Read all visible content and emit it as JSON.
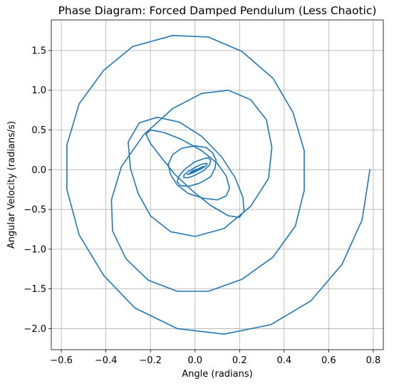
{
  "chart_data": {
    "type": "line",
    "title": "Phase Diagram: Forced Damped Pendulum (Less Chaotic)",
    "xlabel": "Angle (radians)",
    "ylabel": "Angular Velocity (radians/s)",
    "xlim": [
      -0.645,
      0.845
    ],
    "ylim": [
      -2.265,
      1.885
    ],
    "xticks": [
      -0.6,
      -0.4,
      -0.2,
      0.0,
      0.2,
      0.4,
      0.6,
      0.8
    ],
    "xtick_labels": [
      "−0.6",
      "−0.4",
      "−0.2",
      "0.0",
      "0.2",
      "0.4",
      "0.6",
      "0.8"
    ],
    "yticks": [
      -2.0,
      -1.5,
      -1.0,
      -0.5,
      0.0,
      0.5,
      1.0,
      1.5
    ],
    "ytick_labels": [
      "−2.0",
      "−1.5",
      "−1.0",
      "−0.5",
      "0.0",
      "0.5",
      "1.0",
      "1.5"
    ],
    "grid": true,
    "color": "#1f77b4",
    "series": [
      {
        "x": [
          0.785,
          0.75,
          0.66,
          0.52,
          0.34,
          0.13,
          -0.08,
          -0.27,
          -0.41,
          -0.52,
          -0.575,
          -0.575,
          -0.52,
          -0.41,
          -0.28,
          -0.1,
          0.06,
          0.21,
          0.35,
          0.44,
          0.49,
          0.49,
          0.45,
          0.35,
          0.21,
          0.06,
          -0.08,
          -0.21,
          -0.31,
          -0.37,
          -0.375,
          -0.33,
          -0.23,
          -0.1,
          0.03,
          0.15,
          0.25,
          0.32,
          0.345,
          0.33,
          0.25,
          0.13,
          0.0,
          -0.11,
          -0.2,
          -0.255,
          -0.29,
          -0.3,
          -0.25,
          -0.17,
          -0.07,
          0.03,
          0.12,
          0.18,
          0.215,
          0.22,
          0.2,
          0.15,
          0.07,
          -0.01,
          -0.09,
          -0.15,
          -0.2,
          -0.22,
          -0.2,
          -0.14,
          -0.06,
          0.03,
          0.1,
          0.14,
          0.155,
          0.14,
          0.1,
          0.04,
          -0.03,
          -0.08,
          -0.11,
          -0.12,
          -0.1,
          -0.06,
          0.0,
          0.05,
          0.08,
          0.095,
          0.09,
          0.07,
          0.02,
          -0.03,
          -0.065,
          -0.08,
          -0.07,
          -0.04,
          0.0,
          0.04,
          0.06,
          0.07,
          0.065,
          0.04,
          0.0,
          -0.03,
          -0.05,
          -0.05,
          -0.03,
          0.0,
          0.03,
          0.05,
          0.055,
          0.045,
          0.02,
          -0.01,
          -0.03,
          -0.035,
          -0.02,
          0.0,
          0.02,
          0.035,
          0.04,
          0.03,
          0.01,
          -0.01,
          -0.02,
          -0.015,
          0.0,
          0.015,
          0.025,
          0.02
        ],
        "y": [
          0.0,
          -0.63,
          -1.19,
          -1.65,
          -1.95,
          -2.07,
          -2.0,
          -1.74,
          -1.33,
          -0.82,
          -0.25,
          0.31,
          0.83,
          1.25,
          1.55,
          1.69,
          1.67,
          1.49,
          1.15,
          0.72,
          0.24,
          -0.26,
          -0.71,
          -1.1,
          -1.38,
          -1.53,
          -1.53,
          -1.39,
          -1.12,
          -0.77,
          -0.38,
          0.04,
          0.44,
          0.77,
          0.96,
          1.0,
          0.88,
          0.63,
          0.28,
          -0.11,
          -0.46,
          -0.74,
          -0.84,
          -0.78,
          -0.58,
          -0.3,
          0.02,
          0.35,
          0.59,
          0.66,
          0.6,
          0.42,
          0.16,
          -0.1,
          -0.35,
          -0.52,
          -0.6,
          -0.58,
          -0.45,
          -0.27,
          -0.06,
          0.15,
          0.33,
          0.45,
          0.5,
          0.47,
          0.38,
          0.24,
          0.08,
          -0.08,
          -0.23,
          -0.33,
          -0.38,
          -0.36,
          -0.3,
          -0.19,
          -0.06,
          0.07,
          0.19,
          0.27,
          0.3,
          0.28,
          0.21,
          0.12,
          0.02,
          -0.09,
          -0.17,
          -0.21,
          -0.2,
          -0.15,
          -0.07,
          0.02,
          0.1,
          0.14,
          0.15,
          0.12,
          0.06,
          -0.01,
          -0.07,
          -0.1,
          -0.1,
          -0.07,
          -0.02,
          0.03,
          0.07,
          0.08,
          0.07,
          0.04,
          0.0,
          -0.04,
          -0.06,
          -0.06,
          -0.04,
          -0.01,
          0.02,
          0.04,
          0.04,
          0.03,
          0.0,
          -0.02,
          -0.03,
          -0.02,
          0.0,
          0.01,
          0.02,
          0.01
        ]
      }
    ]
  }
}
